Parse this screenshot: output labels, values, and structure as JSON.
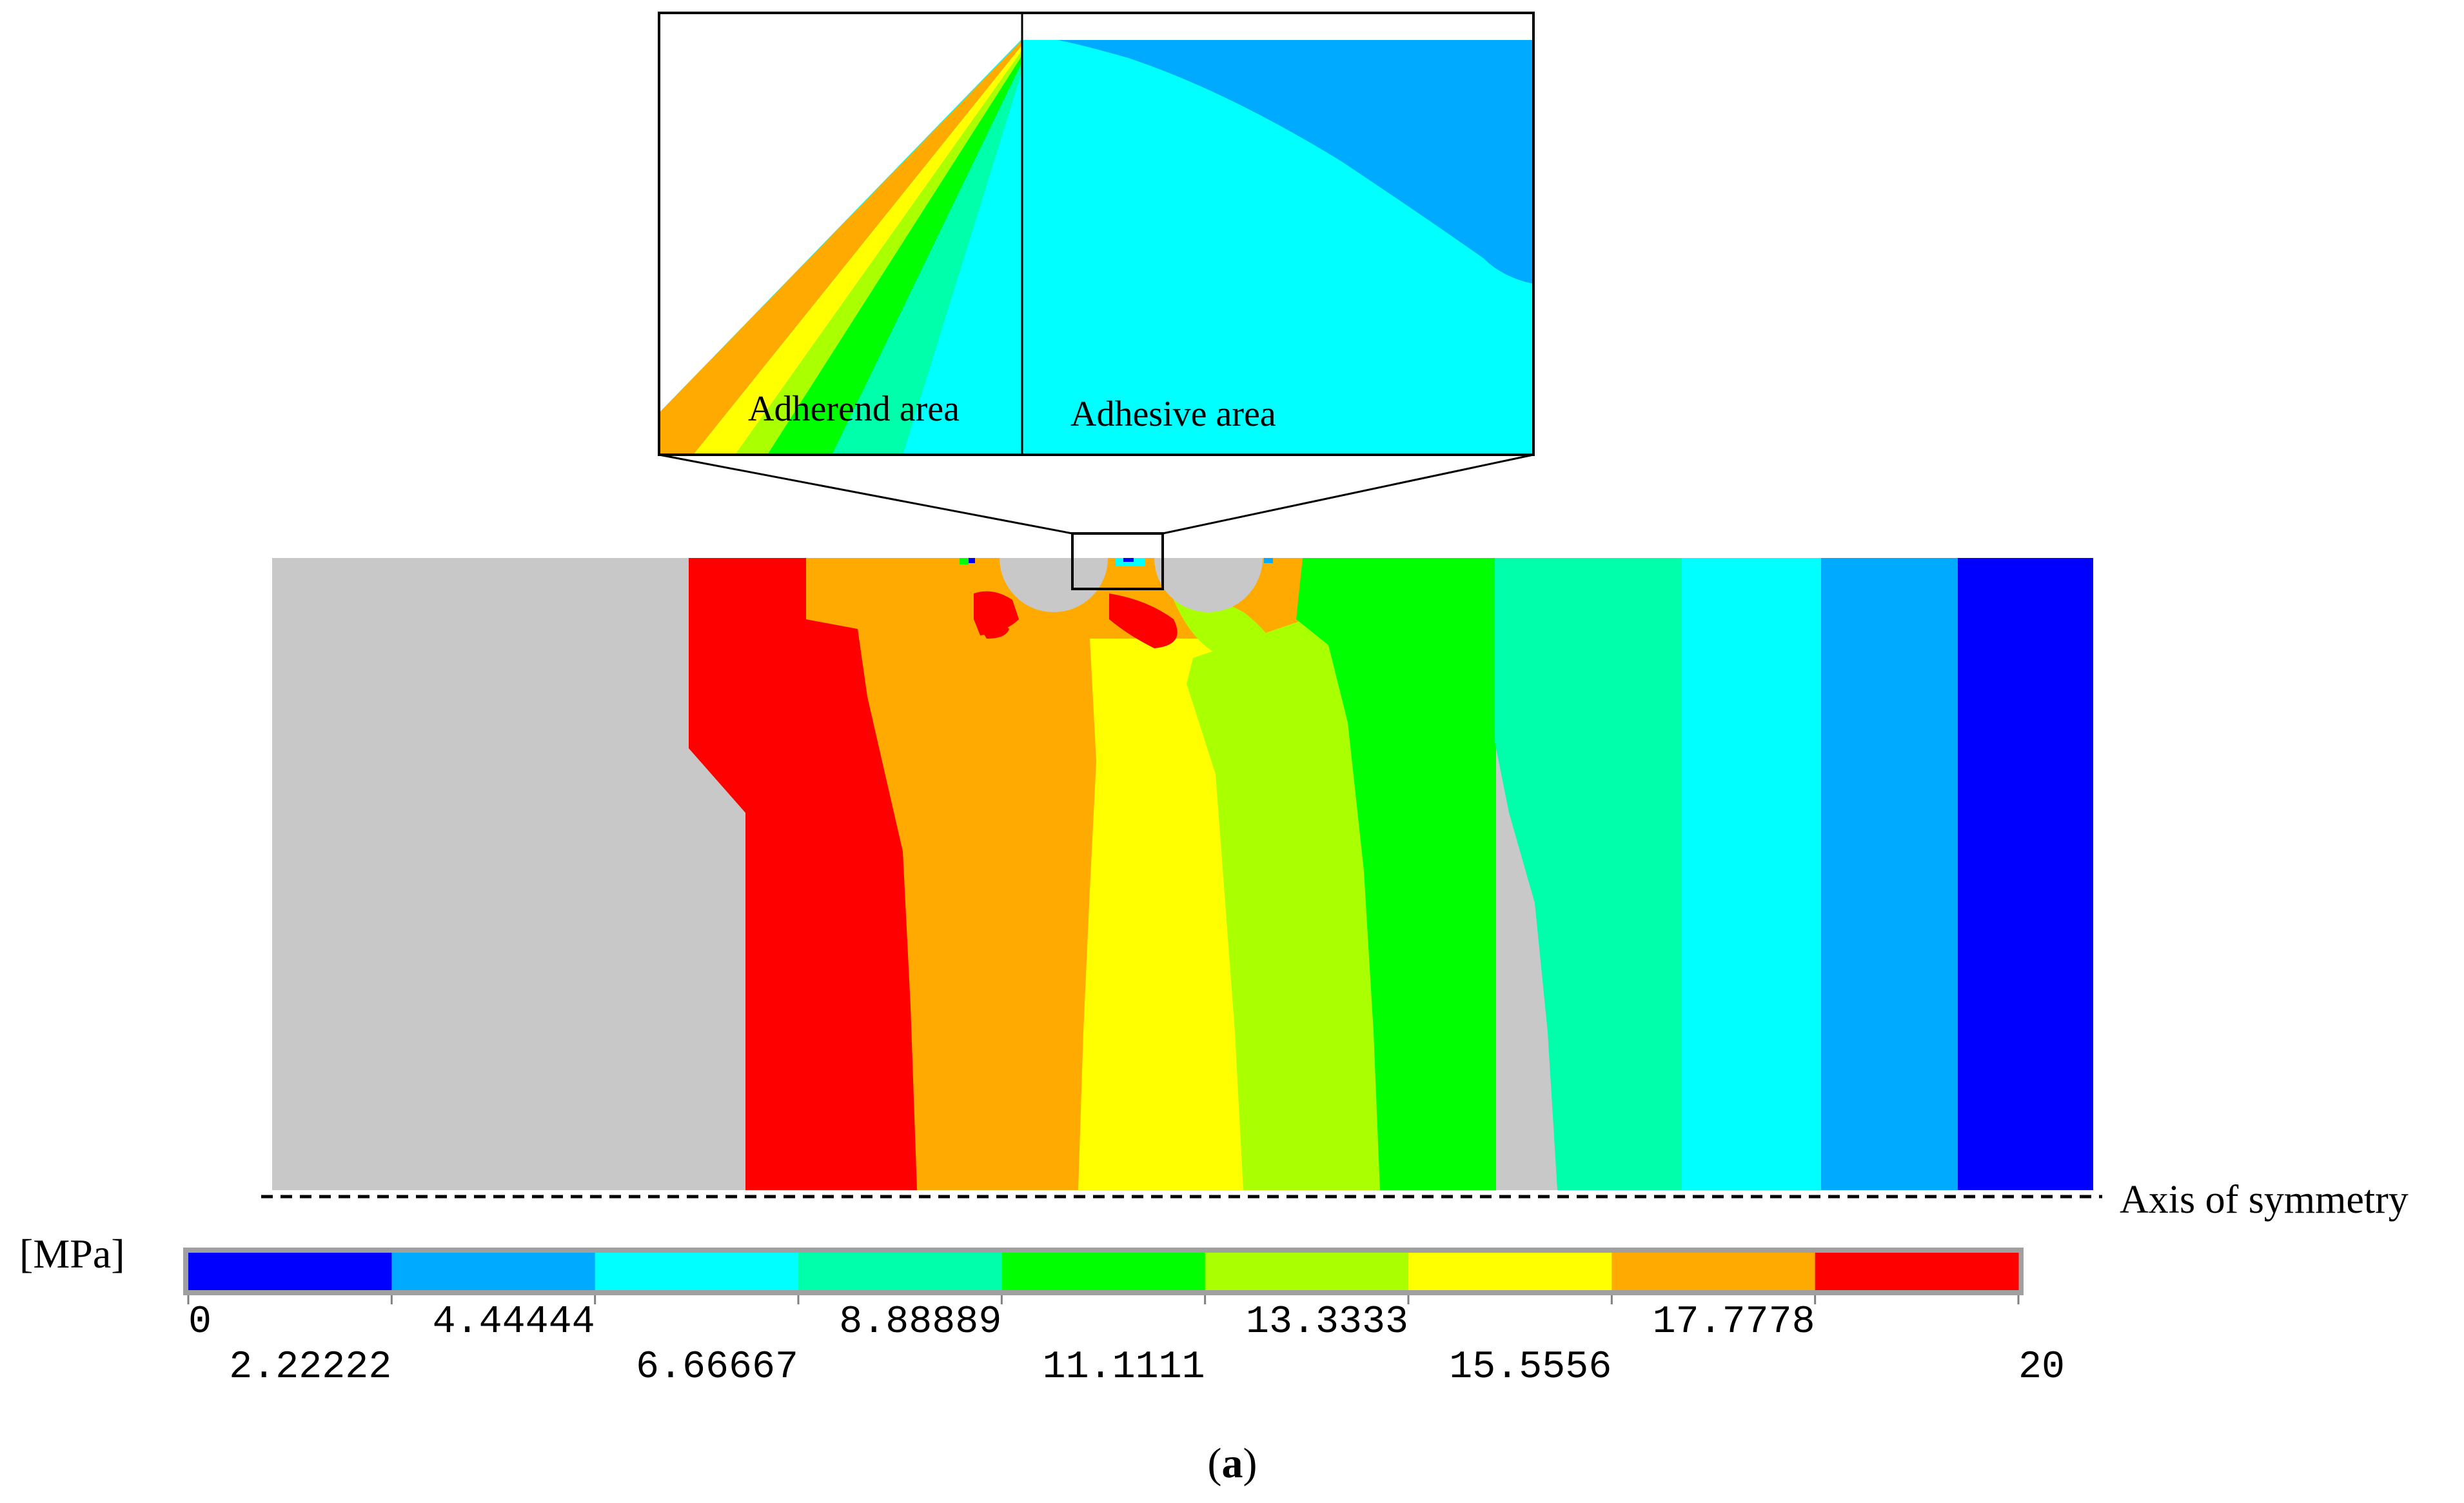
{
  "unit_label": "[MPa]",
  "axis_label": "Axis of symmetry",
  "caption_letter": "a",
  "zoom_labels": {
    "adherend": "Adherend area",
    "adhesive": "Adhesive area"
  },
  "legend": {
    "min": 0,
    "max": 20,
    "ticks": [
      "0",
      "2.22222",
      "4.44444",
      "6.66667",
      "8.88889",
      "11.1111",
      "13.3333",
      "15.5556",
      "17.7778",
      "20"
    ],
    "colors": [
      "#0000ff",
      "#00aaff",
      "#00ffff",
      "#00ffaa",
      "#00ff00",
      "#aaff00",
      "#ffff00",
      "#ffaa00",
      "#ff0000"
    ],
    "out_of_range_color": "#c8c8c8"
  }
}
